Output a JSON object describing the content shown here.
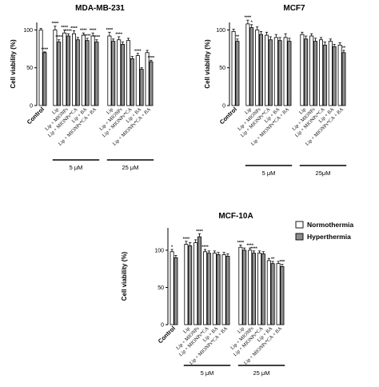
{
  "chart_data": [
    {
      "type": "bar",
      "title": "MDA-MB-231",
      "ylabel": "Cell viability (%)",
      "ylim": [
        0,
        110
      ],
      "yticks": [
        "0",
        "50",
        "100"
      ],
      "group_labels": [
        "5 μM",
        "25 μM"
      ],
      "categories": [
        "Control",
        "Lip",
        "Lip + MIONPs",
        "Lip + MIONPs*CA",
        "Lip + BA",
        "Lip + MIONPs*CA + BA",
        "Lip",
        "Lip + MIONPs",
        "Lip + MIONPs*CA",
        "Lip + BA",
        "Lip + MIONPs*CA + BA"
      ],
      "series": [
        {
          "name": "Normothermia",
          "values": [
            100,
            100,
            96,
            95,
            93,
            92,
            92,
            87,
            86,
            66,
            70
          ],
          "errors": [
            2,
            5,
            4,
            4,
            3,
            4,
            5,
            4,
            3,
            3,
            3
          ],
          "stars": [
            "",
            "****",
            "****",
            "****",
            "****",
            "****",
            "****",
            "****",
            "",
            "****",
            ""
          ]
        },
        {
          "name": "Hyperthermia",
          "values": [
            70,
            84,
            92,
            87,
            86,
            84,
            85,
            81,
            62,
            48,
            58
          ],
          "errors": [
            1,
            3,
            3,
            3,
            3,
            3,
            3,
            3,
            3,
            2,
            2
          ],
          "stars": [
            "****",
            "****",
            "****",
            "",
            "****",
            "****",
            "",
            "",
            "",
            "",
            "****"
          ]
        }
      ]
    },
    {
      "type": "bar",
      "title": "MCF7",
      "ylabel": "Cell viability (%)",
      "ylim": [
        0,
        110
      ],
      "yticks": [
        "0",
        "50",
        "100"
      ],
      "group_labels": [
        "5 μM",
        "25μM"
      ],
      "categories": [
        "Control",
        "Lip",
        "Lip + MIONPs",
        "Lip + MIONPs*CA",
        "Lip + BA",
        "Lip + MIONPs*CA + BA",
        "Lip",
        "Lip + MIONPs",
        "Lip + MIONPs*CA",
        "Lip + BA",
        "Lip + MIONPs*CA + BA"
      ],
      "series": [
        {
          "name": "Normothermia",
          "values": [
            98,
            108,
            100,
            93,
            90,
            90,
            94,
            92,
            87,
            85,
            80
          ],
          "errors": [
            3,
            5,
            4,
            4,
            4,
            5,
            3,
            3,
            3,
            3,
            3
          ],
          "stars": [
            "",
            "****",
            "",
            "",
            "",
            "",
            "",
            "",
            "",
            "",
            ""
          ]
        },
        {
          "name": "Hyperthermia",
          "values": [
            85,
            103,
            94,
            87,
            86,
            85,
            88,
            85,
            80,
            78,
            70
          ],
          "errors": [
            3,
            4,
            4,
            4,
            4,
            4,
            4,
            4,
            4,
            3,
            3
          ],
          "stars": [
            "**",
            "*",
            "",
            "",
            "",
            "",
            "",
            "",
            "",
            "",
            "**"
          ]
        }
      ]
    },
    {
      "type": "bar",
      "title": "MCF-10A",
      "ylabel": "Cell viability (%)",
      "ylim": [
        0,
        130
      ],
      "yticks": [
        "0",
        "50",
        "100"
      ],
      "group_labels": [
        "5 μM",
        "25 μM"
      ],
      "categories": [
        "Control",
        "Lip",
        "Lip + MIONPs",
        "Lip + MIONPs*CA",
        "Lip + BA",
        "Lip + MIONPs*CA + BA",
        "Lip",
        "Lip + MIONPs",
        "Lip + MIONPs*CA",
        "Lip + BA",
        "Lip + MIONPs*CA + BA"
      ],
      "series": [
        {
          "name": "Normothermia",
          "values": [
            98,
            108,
            110,
            98,
            96,
            94,
            104,
            100,
            96,
            86,
            82
          ],
          "errors": [
            3,
            4,
            4,
            3,
            3,
            3,
            3,
            3,
            3,
            3,
            3
          ],
          "stars": [
            "*",
            "****",
            "",
            "****",
            "",
            "",
            "****",
            "****",
            "",
            "",
            ""
          ]
        },
        {
          "name": "Hyperthermia",
          "values": [
            90,
            106,
            118,
            96,
            94,
            92,
            100,
            96,
            95,
            82,
            78
          ],
          "errors": [
            3,
            4,
            4,
            3,
            3,
            3,
            3,
            3,
            3,
            3,
            3
          ],
          "stars": [
            "",
            "",
            "****",
            "",
            "",
            "",
            "",
            "****",
            "",
            "**",
            "***"
          ]
        }
      ]
    }
  ],
  "legend": {
    "items": [
      {
        "label": "Normothermia",
        "color": "#ffffff"
      },
      {
        "label": "Hyperthermia",
        "color": "#8c8c8c"
      }
    ]
  }
}
